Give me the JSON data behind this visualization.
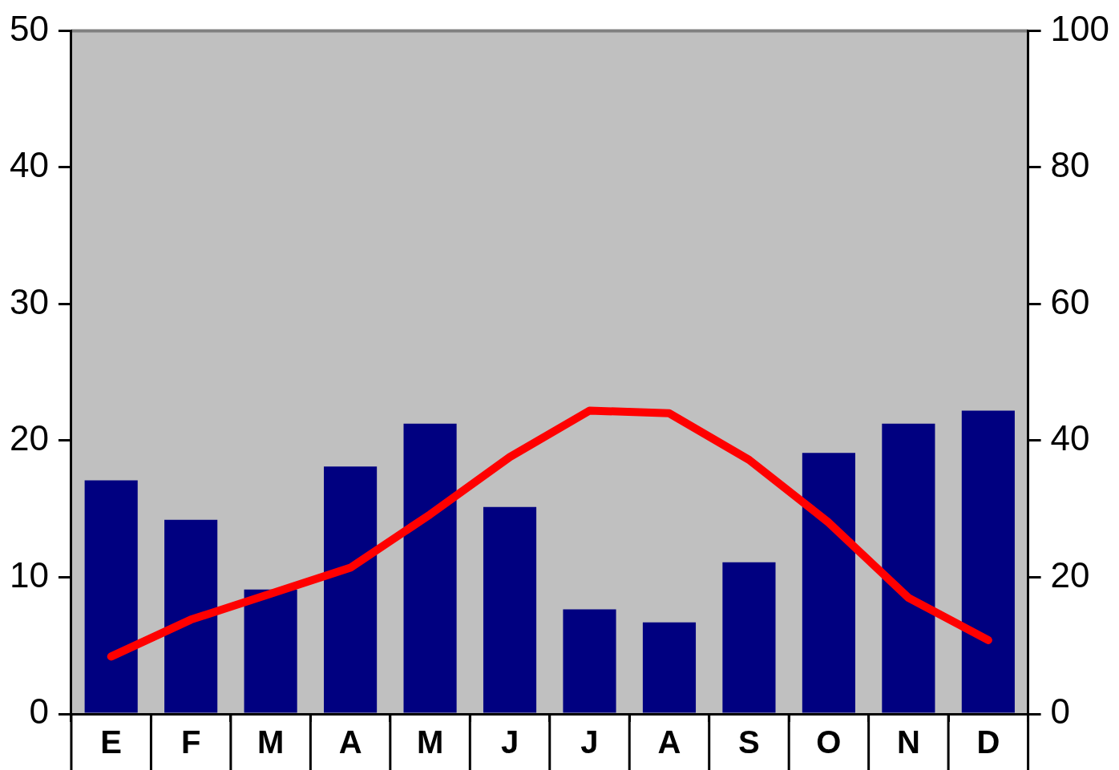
{
  "chart_data": {
    "type": "bar",
    "categories": [
      "E",
      "F",
      "M",
      "A",
      "M",
      "J",
      "J",
      "A",
      "S",
      "O",
      "N",
      "D"
    ],
    "series": [
      {
        "axis": "y2",
        "color": "#000080",
        "values": [
          34.2,
          28.4,
          18.2,
          36.2,
          42.5,
          30.3,
          15.3,
          13.4,
          22.2,
          38.2,
          42.5,
          44.4
        ]
      },
      {
        "type": "line",
        "axis": "y",
        "color": "#ff0000",
        "values": [
          4.2,
          6.9,
          8.8,
          10.7,
          14.6,
          18.8,
          22.2,
          22,
          18.6,
          14,
          8.5,
          5.4
        ]
      }
    ],
    "ylim": [
      0,
      50
    ],
    "yticks": [
      0,
      10,
      20,
      30,
      40,
      50
    ],
    "y2lim": [
      0,
      100
    ],
    "y2ticks": [
      0,
      20,
      40,
      60,
      80,
      100
    ],
    "marker": "none",
    "legend": false
  }
}
